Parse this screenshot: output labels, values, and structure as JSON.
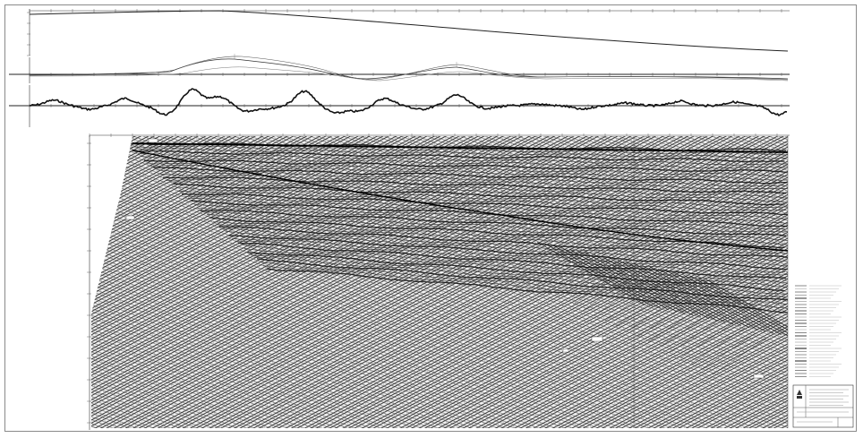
{
  "colors": {
    "paper": "#ffffff",
    "ink": "#1a1a1a",
    "seismic_dark": "#111111",
    "seismic_mid": "#7a7a7a",
    "frame": "#8a8a8a"
  },
  "panels": {
    "bathymetry_label": "",
    "gravity_label": "",
    "magnetic_label": ""
  },
  "section": {
    "header_left": "",
    "header_center": "",
    "header_right": ""
  },
  "legend": {
    "title": "",
    "items": []
  },
  "title_block": {
    "lines": []
  }
}
